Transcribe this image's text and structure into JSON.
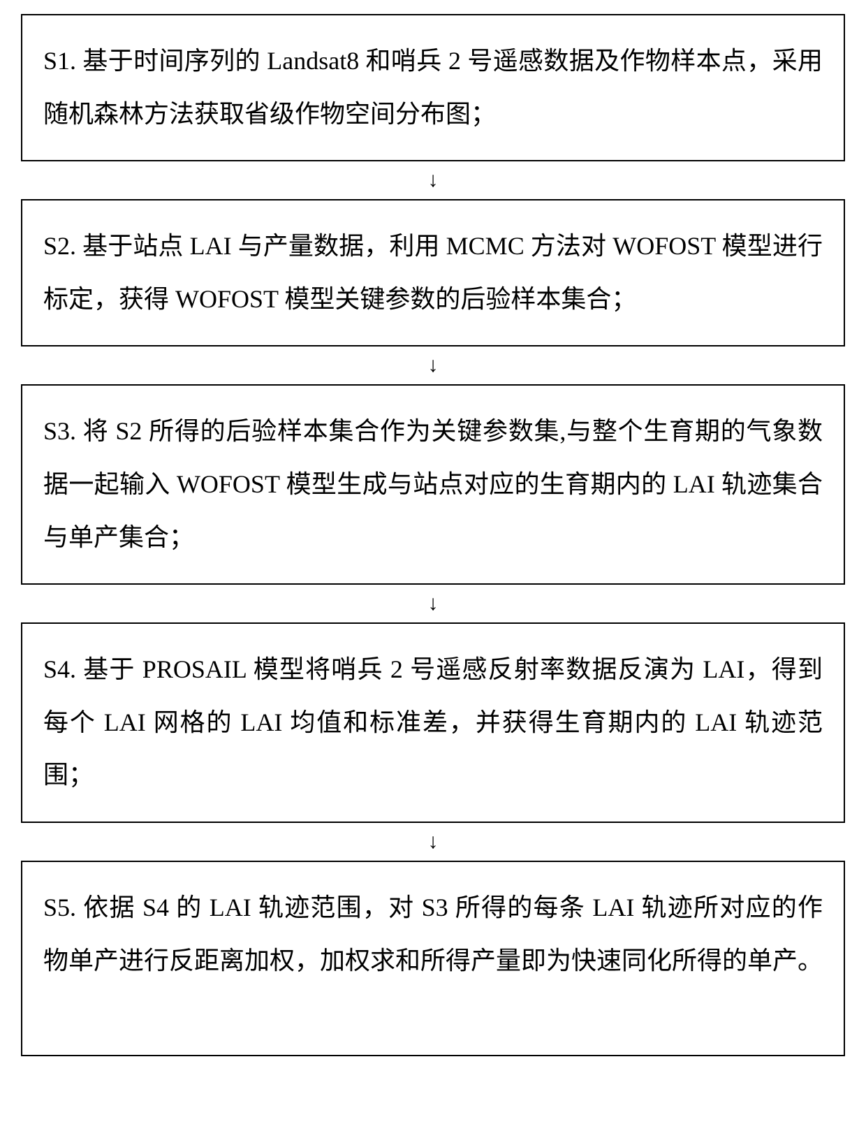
{
  "flowchart": {
    "type": "flowchart",
    "direction": "vertical",
    "background_color": "#ffffff",
    "box_border_color": "#000000",
    "box_border_width": 2,
    "text_color": "#000000",
    "font_size_pt": 27,
    "line_height": 2.1,
    "arrow_glyph": "↓",
    "arrow_color": "#000000",
    "steps": [
      {
        "id": "S1",
        "text": "S1. 基于时间序列的 Landsat8 和哨兵 2 号遥感数据及作物样本点，采用随机森林方法获取省级作物空间分布图；"
      },
      {
        "id": "S2",
        "text": "S2. 基于站点 LAI 与产量数据，利用 MCMC 方法对 WOFOST 模型进行标定，获得 WOFOST 模型关键参数的后验样本集合；"
      },
      {
        "id": "S3",
        "text": "S3. 将 S2 所得的后验样本集合作为关键参数集,与整个生育期的气象数据一起输入 WOFOST 模型生成与站点对应的生育期内的 LAI 轨迹集合与单产集合；"
      },
      {
        "id": "S4",
        "text": "S4. 基于 PROSAIL 模型将哨兵 2 号遥感反射率数据反演为 LAI，得到每个 LAI 网格的 LAI 均值和标准差，并获得生育期内的 LAI 轨迹范围；"
      },
      {
        "id": "S5",
        "text": "S5. 依据 S4 的 LAI 轨迹范围，对 S3 所得的每条 LAI 轨迹所对应的作物单产进行反距离加权，加权求和所得产量即为快速同化所得的单产。"
      }
    ]
  }
}
